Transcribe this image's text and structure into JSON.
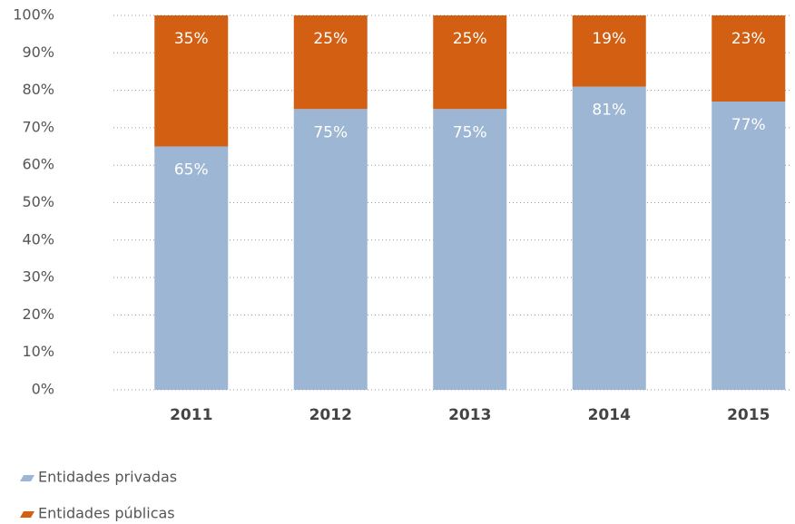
{
  "chart_data": {
    "type": "stacked-bar",
    "categories": [
      "2011",
      "2012",
      "2013",
      "2014",
      "2015"
    ],
    "series": [
      {
        "name": "Entidades privadas",
        "color": "#9db6d3",
        "values": [
          65,
          75,
          75,
          81,
          77
        ],
        "value_labels": [
          "65%",
          "75%",
          "75%",
          "81%",
          "77%"
        ]
      },
      {
        "name": "Entidades públicas",
        "color": "#d35f13",
        "values": [
          35,
          25,
          25,
          19,
          23
        ],
        "value_labels": [
          "35%",
          "25%",
          "25%",
          "19%",
          "23%"
        ]
      }
    ],
    "ylim": [
      0,
      100
    ],
    "yticks": [
      {
        "value": 0,
        "label": "0%"
      },
      {
        "value": 10,
        "label": "10%"
      },
      {
        "value": 20,
        "label": "20%"
      },
      {
        "value": 30,
        "label": "30%"
      },
      {
        "value": 40,
        "label": "40%"
      },
      {
        "value": 50,
        "label": "50%"
      },
      {
        "value": 60,
        "label": "60%"
      },
      {
        "value": 70,
        "label": "70%"
      },
      {
        "value": 80,
        "label": "80%"
      },
      {
        "value": 90,
        "label": "90%"
      },
      {
        "value": 100,
        "label": "100%"
      }
    ],
    "grid": true,
    "legend": "bottom-left"
  }
}
